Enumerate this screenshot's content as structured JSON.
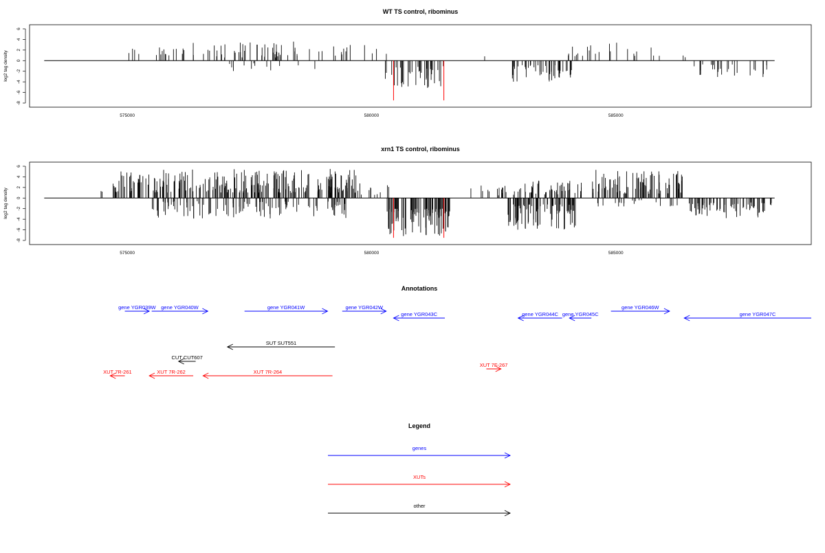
{
  "chart_data": [
    {
      "type": "bar",
      "title": "WT TS control, ribominus",
      "ylabel": "log2 tag density",
      "xlabel": "",
      "xlim": [
        573000,
        589000
      ],
      "ylim": [
        -8,
        6
      ],
      "xticks": [
        575000,
        580000,
        585000
      ],
      "xtick_labels": [
        "575000",
        "580000",
        "585000"
      ],
      "yticks": [
        -8,
        -6,
        -4,
        -2,
        0,
        2,
        4,
        6
      ],
      "ytick_labels": [
        "-8",
        "-6",
        "-4",
        "-2",
        "0",
        "2",
        "4",
        "6"
      ],
      "grid": false,
      "track": [
        573300,
        588250
      ],
      "segments": [
        {
          "strand": "+",
          "range": [
            574900,
            576100
          ],
          "count": 14,
          "amp": [
            0.8,
            2.5
          ]
        },
        {
          "strand": "+",
          "range": [
            576100,
            579000
          ],
          "count": 55,
          "amp": [
            0.6,
            3.6
          ]
        },
        {
          "strand": "-",
          "range": [
            576900,
            578900
          ],
          "count": 12,
          "amp": [
            0.5,
            2.2
          ]
        },
        {
          "strand": "+",
          "range": [
            579100,
            580400
          ],
          "count": 12,
          "amp": [
            0.8,
            3.0
          ]
        },
        {
          "strand": "-",
          "range": [
            580250,
            581500
          ],
          "count": 38,
          "amp": [
            1.0,
            5.2
          ]
        },
        {
          "strand": "+",
          "range": [
            582300,
            582400
          ],
          "count": 1,
          "amp": [
            0.8,
            1.2
          ]
        },
        {
          "strand": "-",
          "range": [
            582850,
            584100
          ],
          "count": 45,
          "amp": [
            0.8,
            4.0
          ]
        },
        {
          "strand": "+",
          "range": [
            584000,
            586100
          ],
          "count": 22,
          "amp": [
            0.8,
            3.7
          ]
        },
        {
          "strand": "+",
          "range": [
            586300,
            586450
          ],
          "count": 2,
          "amp": [
            0.6,
            1.0
          ]
        },
        {
          "strand": "-",
          "range": [
            586500,
            588150
          ],
          "count": 26,
          "amp": [
            0.7,
            3.2
          ]
        }
      ],
      "red_marks": [
        {
          "x": 580450,
          "y": -7.5
        },
        {
          "x": 581480,
          "y": -7.5
        }
      ]
    },
    {
      "type": "bar",
      "title": "xrn1 TS control, ribominus",
      "ylabel": "log2 tag density",
      "xlabel": "",
      "xlim": [
        573000,
        589000
      ],
      "ylim": [
        -8,
        6
      ],
      "xticks": [
        575000,
        580000,
        585000
      ],
      "xtick_labels": [
        "575000",
        "580000",
        "585000"
      ],
      "yticks": [
        -8,
        -6,
        -4,
        -2,
        0,
        2,
        4,
        6
      ],
      "ytick_labels": [
        "-8",
        "-6",
        "-4",
        "-2",
        "0",
        "2",
        "4",
        "6"
      ],
      "grid": false,
      "track": [
        573300,
        588250
      ],
      "segments": [
        {
          "strand": "+",
          "range": [
            574350,
            574500
          ],
          "count": 2,
          "amp": [
            1.0,
            2.5
          ]
        },
        {
          "strand": "+",
          "range": [
            574700,
            579700
          ],
          "count": 240,
          "amp": [
            1.0,
            5.5
          ]
        },
        {
          "strand": "-",
          "range": [
            575500,
            579600
          ],
          "count": 110,
          "amp": [
            0.6,
            4.0
          ]
        },
        {
          "strand": "+",
          "range": [
            579500,
            580400
          ],
          "count": 14,
          "amp": [
            0.6,
            3.0
          ]
        },
        {
          "strand": "-",
          "range": [
            580300,
            581600
          ],
          "count": 95,
          "amp": [
            2.0,
            7.2
          ]
        },
        {
          "strand": "+",
          "range": [
            581900,
            582900
          ],
          "count": 14,
          "amp": [
            0.5,
            2.6
          ]
        },
        {
          "strand": "+",
          "range": [
            582900,
            584300
          ],
          "count": 50,
          "amp": [
            0.6,
            3.6
          ]
        },
        {
          "strand": "-",
          "range": [
            582750,
            584200
          ],
          "count": 85,
          "amp": [
            1.2,
            6.0
          ]
        },
        {
          "strand": "+",
          "range": [
            584500,
            586400
          ],
          "count": 85,
          "amp": [
            0.8,
            5.4
          ]
        },
        {
          "strand": "-",
          "range": [
            584600,
            586300
          ],
          "count": 20,
          "amp": [
            0.4,
            1.8
          ]
        },
        {
          "strand": "-",
          "range": [
            586500,
            588200
          ],
          "count": 70,
          "amp": [
            0.8,
            3.8
          ]
        }
      ],
      "red_marks": [
        {
          "x": 580450,
          "y": -7.5
        },
        {
          "x": 581480,
          "y": -7.5
        }
      ]
    }
  ],
  "annotations": {
    "title": "Annotations",
    "colors": {
      "gene": "#0000ff",
      "xut": "#ff0000",
      "other": "#000000"
    },
    "features": [
      {
        "label": "gene YGR039W",
        "type": "gene",
        "strand": "+",
        "start": 574950,
        "end": 575450,
        "row": 0
      },
      {
        "label": "gene YGR040W",
        "type": "gene",
        "strand": "+",
        "start": 575500,
        "end": 576650,
        "row": 0
      },
      {
        "label": "gene YGR041W",
        "type": "gene",
        "strand": "+",
        "start": 577400,
        "end": 579100,
        "row": 0
      },
      {
        "label": "gene YGR042W",
        "type": "gene",
        "strand": "+",
        "start": 579400,
        "end": 580300,
        "row": 0
      },
      {
        "label": "gene YGR043C",
        "type": "gene",
        "strand": "-",
        "start": 580450,
        "end": 581500,
        "row": 1
      },
      {
        "label": "gene YGR044C",
        "type": "gene",
        "strand": "-",
        "start": 583000,
        "end": 583900,
        "row": 1
      },
      {
        "label": "gene YGR045C",
        "type": "gene",
        "strand": "-",
        "start": 584050,
        "end": 584500,
        "row": 1
      },
      {
        "label": "gene YGR046W",
        "type": "gene",
        "strand": "+",
        "start": 584900,
        "end": 586100,
        "row": 0
      },
      {
        "label": "gene YGR047C",
        "type": "gene",
        "strand": "-",
        "start": 586400,
        "end": 589000,
        "row": 1
      },
      {
        "label": "SUT SUT551",
        "type": "other",
        "strand": "-",
        "start": 577050,
        "end": 579250,
        "row": 2
      },
      {
        "label": "CUT CUT607",
        "type": "other",
        "strand": "-",
        "start": 576050,
        "end": 576400,
        "row": 3
      },
      {
        "label": "XUT 7R-261",
        "type": "xut",
        "strand": "-",
        "start": 574650,
        "end": 574950,
        "row": 4
      },
      {
        "label": "XUT 7R-262",
        "type": "xut",
        "strand": "-",
        "start": 575450,
        "end": 576350,
        "row": 4
      },
      {
        "label": "XUT 7R-264",
        "type": "xut",
        "strand": "-",
        "start": 576550,
        "end": 579200,
        "row": 4
      },
      {
        "label": "XUT 7F-267",
        "type": "xut",
        "strand": "+",
        "start": 582350,
        "end": 582650,
        "row": 5
      }
    ]
  },
  "legend": {
    "title": "Legend",
    "items": [
      {
        "label": "genes",
        "type": "gene"
      },
      {
        "label": "XUTs",
        "type": "xut"
      },
      {
        "label": "other",
        "type": "other"
      }
    ]
  }
}
